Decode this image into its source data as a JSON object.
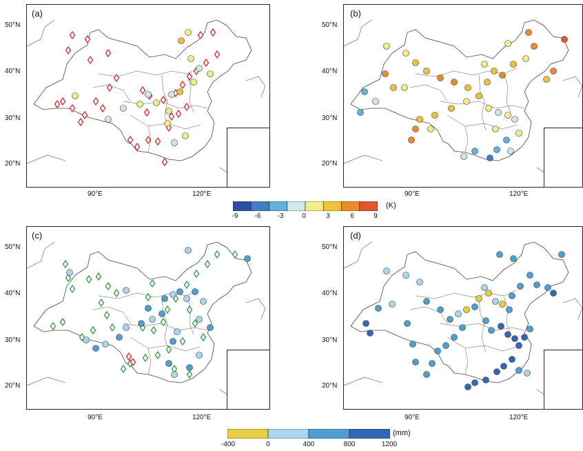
{
  "panels": [
    {
      "id": "a",
      "label": "(a)",
      "lat_labels": [
        "50°N",
        "40°N",
        "30°N",
        "20°N"
      ],
      "lon_labels": [
        "90°E",
        "120°E"
      ]
    },
    {
      "id": "b",
      "label": "(b)",
      "lat_labels": [
        "50°N",
        "40°N",
        "30°N",
        "20°N"
      ],
      "lon_labels": [
        "90°E",
        "120°E"
      ]
    },
    {
      "id": "c",
      "label": "(c)",
      "lat_labels": [
        "50°N",
        "40°N",
        "30°N",
        "20°N"
      ],
      "lon_labels": [
        "90°E",
        "120°E"
      ]
    },
    {
      "id": "d",
      "label": "(d)",
      "lat_labels": [
        "50°N",
        "40°N",
        "30°N",
        "20°N"
      ],
      "lon_labels": [
        "90°E",
        "120°E"
      ]
    }
  ],
  "temperature_colorbar": {
    "unit": "(K)",
    "ticks": [
      "-9",
      "-6",
      "-3",
      "0",
      "3",
      "6",
      "9"
    ],
    "colors": [
      "#2b4fa3",
      "#3d7fc4",
      "#5fb3de",
      "#cde8e6",
      "#f4ed8a",
      "#f0c23a",
      "#ec8a2c",
      "#e2542a"
    ]
  },
  "precipitation_colorbar": {
    "unit": "(mm)",
    "ticks": [
      "-400",
      "0",
      "400",
      "800",
      "1200"
    ],
    "colors": [
      "#e7cf45",
      "#a9d6ea",
      "#4f9fd3",
      "#3467b5"
    ]
  },
  "markers": {
    "diamond_red": "#d8262f",
    "diamond_green": "#2f9a3a"
  }
}
